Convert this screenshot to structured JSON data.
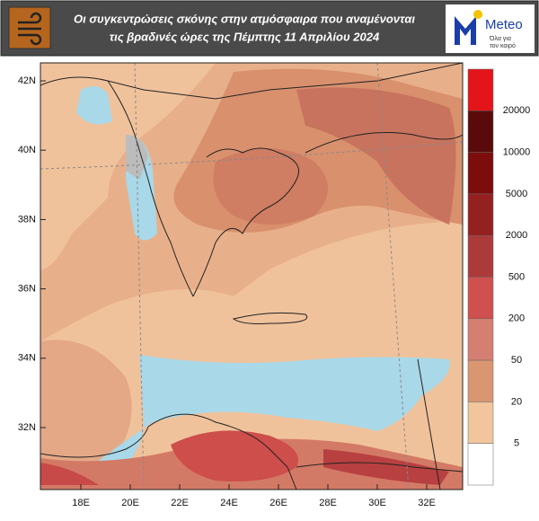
{
  "header": {
    "title_lines": [
      "Οι συγκεντρώσεις σκόνης στην ατμόσφαιρα που αναμένονται",
      "τις βραδινές ώρες της Πέμπτης 11 Απριλίου 2024"
    ],
    "logo": {
      "name": "Meteo",
      "tagline_lines": [
        "Όλα για",
        "τον καιρό"
      ]
    }
  },
  "map": {
    "lat_labels": [
      "42N",
      "40N",
      "38N",
      "36N",
      "34N",
      "32N"
    ],
    "lon_labels": [
      "18E",
      "20E",
      "22E",
      "24E",
      "26E",
      "28E",
      "30E",
      "32E"
    ]
  },
  "legend": {
    "colors": [
      "#e3151a",
      "#5a0a0a",
      "#7d0c0c",
      "#952020",
      "#ad3a3a",
      "#cf504e",
      "#d47f72",
      "#da9671",
      "#f2c59d",
      "#ffffff"
    ],
    "labels": [
      "20000",
      "10000",
      "5000",
      "2000",
      "500",
      "200",
      "50",
      "20",
      "5"
    ]
  }
}
